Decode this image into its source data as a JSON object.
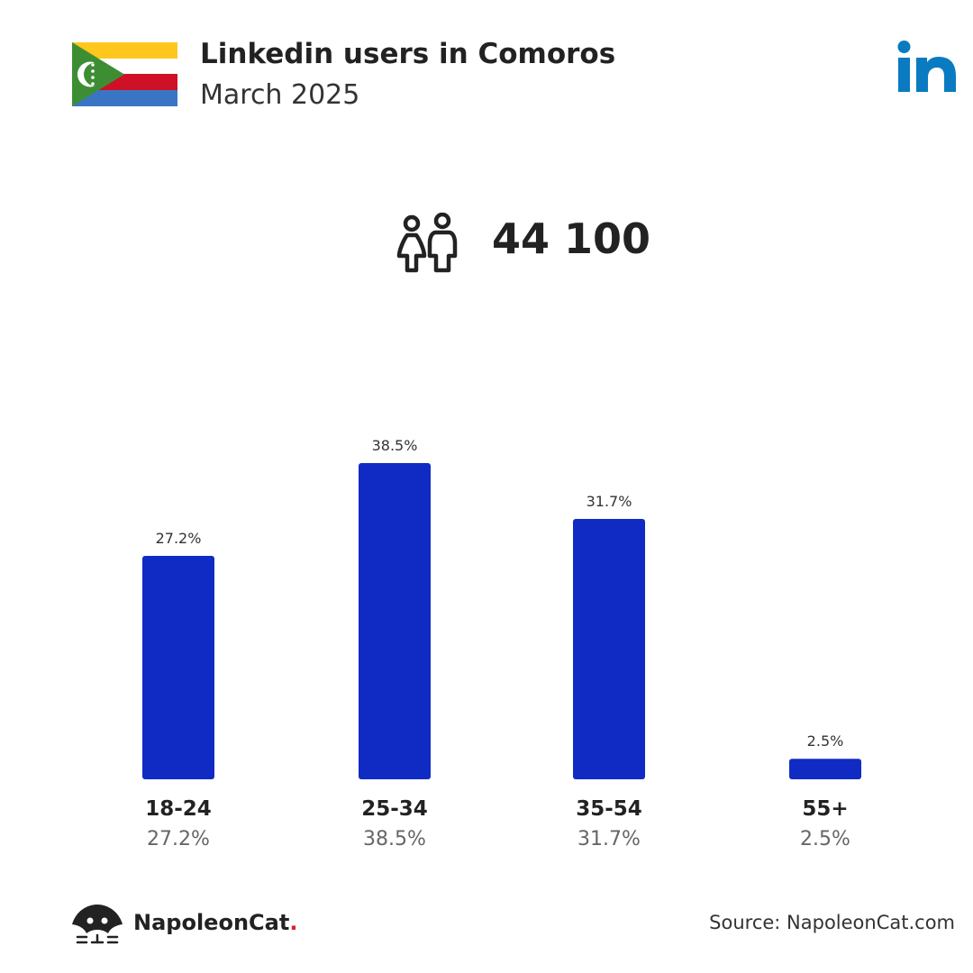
{
  "header": {
    "title": "Linkedin users in Comoros",
    "subtitle": "March 2025"
  },
  "summary": {
    "total_users": "44 100"
  },
  "footer": {
    "brand": "NapoleonCat",
    "brand_dot": ".",
    "source": "Source: NapoleonCat.com"
  },
  "icons": {
    "flag": "comoros-flag-icon",
    "platform": "linkedin-logo-icon",
    "users": "users-icon",
    "brand": "napoleoncat-logo-icon"
  },
  "colors": {
    "bar": "#102BC4",
    "linkedin": "#0A7BC1",
    "brand_dot": "#E21F26",
    "flag_yellow": "#FFC61E",
    "flag_white": "#FFFFFF",
    "flag_red": "#CE1126",
    "flag_blue": "#3A75C4",
    "flag_green": "#3D8E33"
  },
  "chart_data": {
    "type": "bar",
    "categories": [
      "18-24",
      "25-34",
      "35-54",
      "55+"
    ],
    "values": [
      27.2,
      38.5,
      31.7,
      2.5
    ],
    "value_labels": [
      "27.2%",
      "38.5%",
      "31.7%",
      "2.5%"
    ],
    "title": "",
    "xlabel": "",
    "ylabel": "",
    "unit": "%",
    "ylim": [
      0,
      38.5
    ],
    "grid": false,
    "legend": "none"
  }
}
